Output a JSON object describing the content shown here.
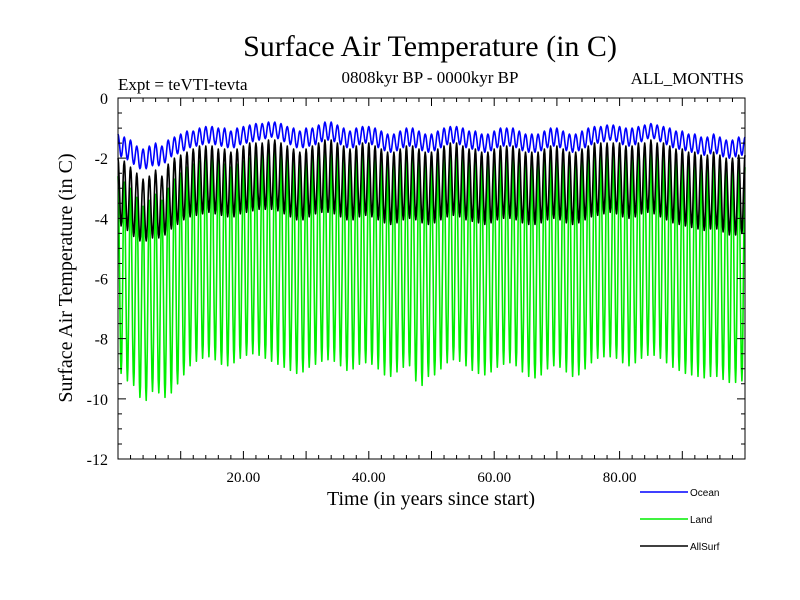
{
  "chart_data": {
    "type": "line",
    "title": "Surface Air Temperature (in C)",
    "subtitle": "0808kyr BP - 0000kyr BP",
    "left_note": "Expt = teVTI-tevta",
    "right_note": "ALL_MONTHS",
    "xlabel": "Time (in years since start)",
    "ylabel": "Surface Air Temperature (in C)",
    "xlim": [
      0,
      100
    ],
    "ylim": [
      -12,
      0
    ],
    "x_ticks": [
      20,
      40,
      60,
      80
    ],
    "x_tick_labels": [
      "20.00",
      "40.00",
      "60.00",
      "80.00"
    ],
    "y_ticks": [
      0,
      -2,
      -4,
      -6,
      -8,
      -10,
      -12
    ],
    "y_tick_labels": [
      "0",
      "-2",
      "-4",
      "-6",
      "-8",
      "-10",
      "-12"
    ],
    "legend_position": "bottom-right",
    "series": [
      {
        "name": "Ocean",
        "color": "#0000ff",
        "seasonal_cycle_years": 1,
        "monthly_min_by_year": [
          -1.9,
          -2.0,
          -2.1,
          -2.3,
          -2.4,
          -2.3,
          -2.2,
          -2.3,
          -2.0,
          -1.9,
          -1.8,
          -1.7,
          -1.6,
          -1.6,
          -1.5,
          -1.5,
          -1.6,
          -1.6,
          -1.7,
          -1.6,
          -1.5,
          -1.5,
          -1.4,
          -1.4,
          -1.3,
          -1.3,
          -1.4,
          -1.5,
          -1.6,
          -1.7,
          -1.6,
          -1.6,
          -1.5,
          -1.4,
          -1.4,
          -1.5,
          -1.6,
          -1.7,
          -1.6,
          -1.5,
          -1.5,
          -1.6,
          -1.7,
          -1.8,
          -1.8,
          -1.7,
          -1.6,
          -1.6,
          -1.7,
          -1.8,
          -1.8,
          -1.7,
          -1.6,
          -1.5,
          -1.5,
          -1.6,
          -1.7,
          -1.7,
          -1.8,
          -1.8,
          -1.7,
          -1.6,
          -1.6,
          -1.6,
          -1.7,
          -1.8,
          -1.8,
          -1.8,
          -1.7,
          -1.6,
          -1.6,
          -1.7,
          -1.8,
          -1.8,
          -1.7,
          -1.6,
          -1.5,
          -1.5,
          -1.4,
          -1.4,
          -1.5,
          -1.6,
          -1.6,
          -1.5,
          -1.4,
          -1.3,
          -1.4,
          -1.5,
          -1.6,
          -1.7,
          -1.7,
          -1.8,
          -1.8,
          -1.9,
          -1.9,
          -1.8,
          -1.9,
          -2.0,
          -2.0,
          -1.9
        ],
        "monthly_max_by_year": [
          -1.2,
          -1.3,
          -1.4,
          -1.6,
          -1.7,
          -1.6,
          -1.5,
          -1.6,
          -1.4,
          -1.3,
          -1.2,
          -1.1,
          -1.1,
          -1.0,
          -0.95,
          -0.95,
          -1.0,
          -1.0,
          -1.1,
          -1.0,
          -0.95,
          -0.9,
          -0.85,
          -0.85,
          -0.8,
          -0.8,
          -0.85,
          -0.95,
          -1.0,
          -1.1,
          -1.0,
          -1.0,
          -0.9,
          -0.8,
          -0.8,
          -0.9,
          -1.0,
          -1.1,
          -1.0,
          -0.95,
          -0.95,
          -1.0,
          -1.1,
          -1.2,
          -1.2,
          -1.1,
          -1.0,
          -1.0,
          -1.1,
          -1.2,
          -1.2,
          -1.1,
          -1.0,
          -0.95,
          -0.95,
          -1.0,
          -1.1,
          -1.1,
          -1.2,
          -1.2,
          -1.1,
          -1.0,
          -1.0,
          -1.0,
          -1.1,
          -1.2,
          -1.2,
          -1.2,
          -1.1,
          -1.0,
          -1.0,
          -1.1,
          -1.2,
          -1.2,
          -1.1,
          -1.0,
          -0.95,
          -0.95,
          -0.9,
          -0.9,
          -0.95,
          -1.0,
          -1.0,
          -0.95,
          -0.9,
          -0.85,
          -0.9,
          -0.95,
          -1.0,
          -1.1,
          -1.1,
          -1.2,
          -1.2,
          -1.3,
          -1.3,
          -1.2,
          -1.3,
          -1.4,
          -1.4,
          -1.3
        ]
      },
      {
        "name": "Land",
        "color": "#00ee00",
        "seasonal_cycle_years": 1,
        "monthly_min_by_year": [
          -9.0,
          -9.3,
          -9.5,
          -9.6,
          -10.3,
          -9.8,
          -9.7,
          -9.9,
          -10.0,
          -9.6,
          -9.4,
          -9.0,
          -8.8,
          -8.7,
          -8.6,
          -8.6,
          -8.8,
          -8.9,
          -8.9,
          -8.7,
          -8.6,
          -8.5,
          -8.5,
          -8.6,
          -8.7,
          -8.8,
          -8.9,
          -9.0,
          -9.1,
          -9.2,
          -9.0,
          -8.9,
          -8.8,
          -8.7,
          -8.7,
          -8.8,
          -9.0,
          -9.1,
          -8.9,
          -8.8,
          -8.8,
          -8.9,
          -9.1,
          -9.3,
          -9.2,
          -9.0,
          -8.9,
          -8.9,
          -9.9,
          -9.2,
          -9.3,
          -9.1,
          -8.9,
          -8.7,
          -8.7,
          -8.8,
          -9.0,
          -9.1,
          -9.2,
          -9.2,
          -9.0,
          -8.9,
          -8.8,
          -8.8,
          -9.0,
          -9.2,
          -9.3,
          -9.3,
          -9.1,
          -8.9,
          -8.9,
          -9.0,
          -9.2,
          -9.3,
          -9.1,
          -8.9,
          -8.7,
          -8.6,
          -8.6,
          -8.6,
          -8.7,
          -8.9,
          -8.9,
          -8.7,
          -8.6,
          -8.5,
          -8.6,
          -8.7,
          -8.9,
          -9.0,
          -9.1,
          -9.2,
          -9.2,
          -9.3,
          -9.3,
          -9.2,
          -9.3,
          -9.4,
          -9.5,
          -9.4
        ],
        "monthly_max_by_year": [
          -2.6,
          -2.8,
          -3.0,
          -3.3,
          -3.6,
          -3.4,
          -3.2,
          -3.4,
          -3.0,
          -2.7,
          -2.5,
          -2.3,
          -2.2,
          -2.1,
          -2.0,
          -2.0,
          -2.1,
          -2.2,
          -2.3,
          -2.2,
          -2.1,
          -2.0,
          -1.9,
          -1.9,
          -1.8,
          -1.8,
          -1.9,
          -2.0,
          -2.1,
          -2.2,
          -2.1,
          -2.0,
          -1.9,
          -1.8,
          -1.8,
          -1.9,
          -2.0,
          -2.1,
          -2.0,
          -1.9,
          -1.9,
          -2.0,
          -2.1,
          -2.2,
          -2.2,
          -2.1,
          -2.0,
          -2.0,
          -2.1,
          -2.2,
          -2.2,
          -2.1,
          -2.0,
          -1.9,
          -1.9,
          -2.0,
          -2.1,
          -2.1,
          -2.2,
          -2.2,
          -2.1,
          -2.0,
          -2.0,
          -2.0,
          -2.1,
          -2.2,
          -2.2,
          -2.2,
          -2.1,
          -2.0,
          -2.0,
          -2.1,
          -2.2,
          -2.2,
          -2.1,
          -2.0,
          -1.9,
          -1.9,
          -1.8,
          -1.8,
          -1.9,
          -2.0,
          -2.0,
          -1.9,
          -1.8,
          -1.7,
          -1.8,
          -1.9,
          -2.0,
          -2.1,
          -2.1,
          -2.2,
          -2.2,
          -2.3,
          -2.3,
          -2.2,
          -2.3,
          -2.4,
          -2.4,
          -2.3
        ]
      },
      {
        "name": "AllSurf",
        "color": "#000000",
        "seasonal_cycle_years": 1,
        "monthly_min_by_year": [
          -4.2,
          -4.3,
          -4.5,
          -4.7,
          -4.8,
          -4.7,
          -4.6,
          -4.7,
          -4.4,
          -4.3,
          -4.1,
          -4.0,
          -3.9,
          -3.9,
          -3.8,
          -3.8,
          -3.9,
          -3.9,
          -4.0,
          -3.9,
          -3.8,
          -3.8,
          -3.7,
          -3.7,
          -3.7,
          -3.7,
          -3.8,
          -3.9,
          -4.0,
          -4.1,
          -4.0,
          -3.9,
          -3.8,
          -3.8,
          -3.8,
          -3.9,
          -4.0,
          -4.1,
          -4.0,
          -3.9,
          -3.9,
          -4.0,
          -4.1,
          -4.2,
          -4.2,
          -4.1,
          -4.0,
          -4.0,
          -4.1,
          -4.2,
          -4.2,
          -4.1,
          -4.0,
          -3.9,
          -3.9,
          -4.0,
          -4.1,
          -4.1,
          -4.2,
          -4.2,
          -4.1,
          -4.0,
          -4.0,
          -4.0,
          -4.1,
          -4.2,
          -4.2,
          -4.2,
          -4.1,
          -4.0,
          -4.0,
          -4.1,
          -4.2,
          -4.2,
          -4.1,
          -4.0,
          -3.9,
          -3.9,
          -3.8,
          -3.8,
          -3.9,
          -4.0,
          -4.0,
          -3.9,
          -3.8,
          -3.8,
          -3.9,
          -4.0,
          -4.1,
          -4.2,
          -4.2,
          -4.3,
          -4.3,
          -4.4,
          -4.4,
          -4.3,
          -4.4,
          -4.5,
          -4.6,
          -4.5
        ],
        "monthly_max_by_year": [
          -2.0,
          -2.1,
          -2.3,
          -2.5,
          -2.7,
          -2.6,
          -2.4,
          -2.6,
          -2.2,
          -2.0,
          -1.9,
          -1.8,
          -1.7,
          -1.6,
          -1.6,
          -1.6,
          -1.7,
          -1.7,
          -1.8,
          -1.7,
          -1.6,
          -1.5,
          -1.5,
          -1.5,
          -1.4,
          -1.4,
          -1.5,
          -1.6,
          -1.7,
          -1.8,
          -1.7,
          -1.6,
          -1.5,
          -1.4,
          -1.4,
          -1.5,
          -1.6,
          -1.7,
          -1.6,
          -1.5,
          -1.5,
          -1.6,
          -1.7,
          -1.8,
          -1.8,
          -1.7,
          -1.6,
          -1.6,
          -1.7,
          -1.8,
          -1.8,
          -1.7,
          -1.6,
          -1.5,
          -1.5,
          -1.6,
          -1.7,
          -1.7,
          -1.8,
          -1.8,
          -1.7,
          -1.6,
          -1.6,
          -1.6,
          -1.7,
          -1.8,
          -1.8,
          -1.8,
          -1.7,
          -1.6,
          -1.6,
          -1.7,
          -1.8,
          -1.8,
          -1.7,
          -1.6,
          -1.5,
          -1.5,
          -1.5,
          -1.5,
          -1.5,
          -1.6,
          -1.6,
          -1.5,
          -1.5,
          -1.4,
          -1.5,
          -1.5,
          -1.6,
          -1.7,
          -1.7,
          -1.8,
          -1.8,
          -1.9,
          -1.9,
          -1.8,
          -1.9,
          -2.0,
          -2.0,
          -1.9
        ]
      }
    ]
  }
}
